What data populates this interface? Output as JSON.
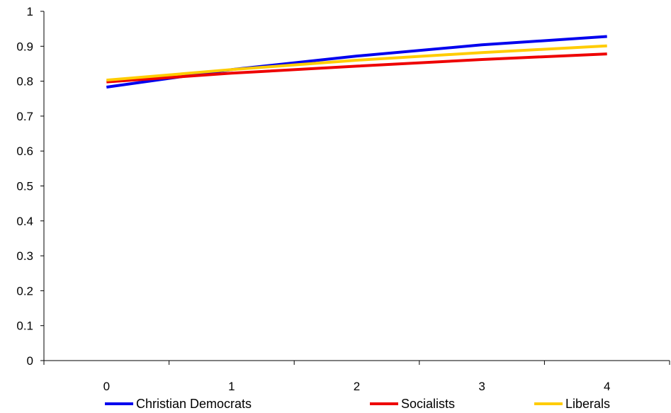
{
  "chart_data": {
    "type": "line",
    "x": [
      0,
      1,
      2,
      3,
      4
    ],
    "xticks": [
      "0",
      "1",
      "2",
      "3",
      "4"
    ],
    "yticks": [
      "0",
      "0.1",
      "0.2",
      "0.3",
      "0.4",
      "0.5",
      "0.6",
      "0.7",
      "0.8",
      "0.9",
      "1"
    ],
    "ylim": [
      0,
      1
    ],
    "grid": false,
    "legend": "bottom",
    "series": [
      {
        "name": "Christian Democrats",
        "color": "#0000ee",
        "values": [
          0.783,
          0.833,
          0.872,
          0.904,
          0.928
        ]
      },
      {
        "name": "Socialists",
        "color": "#ee0000",
        "values": [
          0.798,
          0.823,
          0.843,
          0.862,
          0.878
        ]
      },
      {
        "name": "Liberals",
        "color": "#ffcc00",
        "values": [
          0.803,
          0.833,
          0.86,
          0.882,
          0.901
        ]
      }
    ]
  }
}
